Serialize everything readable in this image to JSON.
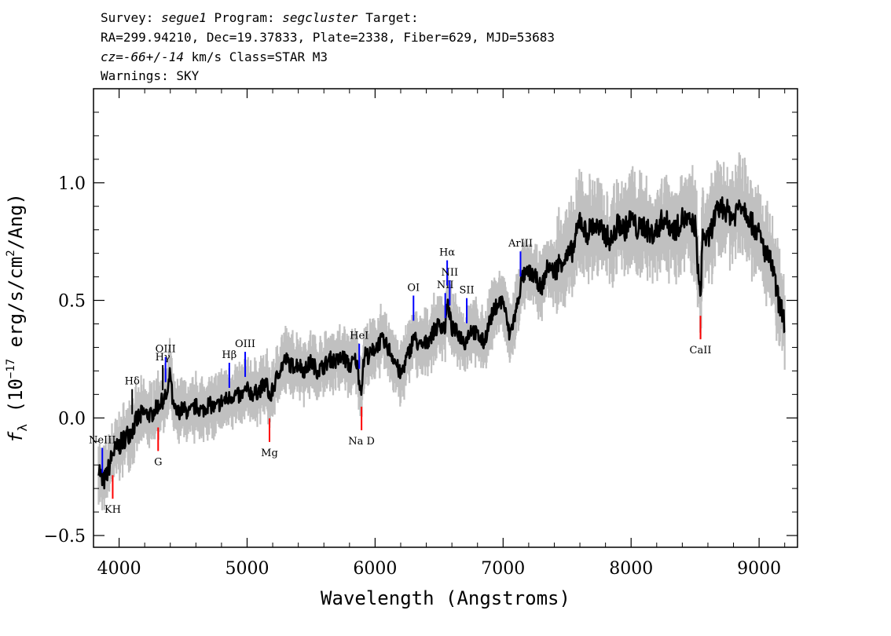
{
  "header": {
    "survey_label": "Survey:",
    "survey": "segue1",
    "program_label": "Program:",
    "program": "segcluster",
    "target_label": "Target:",
    "line2": "RA=299.94210, Dec=19.37833, Plate=2338, Fiber=629, MJD=53683",
    "cz_label": "cz=",
    "cz_value": "-66+/-14",
    "cz_rest": " km/s Class=STAR M3",
    "warnings": "Warnings: SKY"
  },
  "chart_data": {
    "type": "line",
    "xlabel": "Wavelength (Angstroms)",
    "ylabel": "f_λ (10^-17 erg/s/cm^2/Ang)",
    "xlim": [
      3800,
      9300
    ],
    "ylim": [
      -0.55,
      1.4
    ],
    "xticks": [
      4000,
      5000,
      6000,
      7000,
      8000,
      9000
    ],
    "xtick_labels": [
      "4000",
      "5000",
      "6000",
      "7000",
      "8000",
      "9000"
    ],
    "yticks": [
      -0.5,
      0.0,
      0.5,
      1.0
    ],
    "ytick_labels": [
      "−0.5",
      "0.0",
      "0.5",
      "1.0"
    ],
    "grid": false,
    "series": [
      {
        "color": "#000000",
        "x": [
          3840,
          3870,
          3900,
          3950,
          4000,
          4050,
          4100,
          4150,
          4200,
          4250,
          4300,
          4350,
          4380,
          4400,
          4420,
          4450,
          4500,
          4550,
          4600,
          4650,
          4700,
          4750,
          4800,
          4850,
          4900,
          4950,
          5000,
          5050,
          5100,
          5150,
          5180,
          5200,
          5250,
          5300,
          5350,
          5400,
          5450,
          5500,
          5550,
          5600,
          5650,
          5700,
          5750,
          5800,
          5850,
          5890,
          5920,
          5950,
          6000,
          6050,
          6100,
          6150,
          6200,
          6250,
          6280,
          6300,
          6350,
          6400,
          6450,
          6500,
          6550,
          6563,
          6600,
          6650,
          6700,
          6750,
          6800,
          6850,
          6900,
          6950,
          7000,
          7050,
          7100,
          7150,
          7200,
          7250,
          7300,
          7350,
          7400,
          7450,
          7500,
          7550,
          7600,
          7650,
          7700,
          7750,
          7800,
          7850,
          7900,
          7950,
          8000,
          8050,
          8100,
          8150,
          8200,
          8250,
          8300,
          8350,
          8400,
          8450,
          8500,
          8540,
          8560,
          8600,
          8650,
          8700,
          8750,
          8800,
          8850,
          8900,
          8950,
          9000,
          9050,
          9100,
          9150,
          9180,
          9200
        ],
        "y": [
          -0.2,
          -0.28,
          -0.25,
          -0.15,
          -0.12,
          -0.08,
          -0.05,
          0.0,
          0.02,
          0.01,
          0.05,
          0.08,
          0.1,
          0.2,
          0.05,
          0.02,
          0.04,
          0.02,
          0.05,
          0.03,
          0.06,
          0.04,
          0.07,
          0.08,
          0.1,
          0.09,
          0.12,
          0.1,
          0.12,
          0.15,
          0.08,
          0.12,
          0.2,
          0.25,
          0.22,
          0.23,
          0.2,
          0.24,
          0.2,
          0.22,
          0.25,
          0.24,
          0.26,
          0.22,
          0.25,
          0.12,
          0.28,
          0.26,
          0.3,
          0.33,
          0.3,
          0.25,
          0.18,
          0.26,
          0.3,
          0.35,
          0.3,
          0.32,
          0.36,
          0.4,
          0.38,
          0.5,
          0.38,
          0.36,
          0.32,
          0.38,
          0.35,
          0.32,
          0.42,
          0.48,
          0.5,
          0.35,
          0.45,
          0.6,
          0.62,
          0.6,
          0.55,
          0.65,
          0.62,
          0.67,
          0.68,
          0.72,
          0.85,
          0.78,
          0.82,
          0.8,
          0.78,
          0.75,
          0.83,
          0.8,
          0.85,
          0.8,
          0.82,
          0.78,
          0.8,
          0.85,
          0.82,
          0.8,
          0.85,
          0.83,
          0.82,
          0.5,
          0.78,
          0.75,
          0.85,
          0.9,
          0.88,
          0.85,
          0.92,
          0.88,
          0.82,
          0.78,
          0.7,
          0.65,
          0.5,
          0.45,
          0.4
        ],
        "error_band_color": "#c0c0c0"
      }
    ],
    "annotations": [
      {
        "label": "NeIII",
        "wavelength": 3869,
        "color": "#0000ff",
        "position": "above"
      },
      {
        "label": "Hδ",
        "wavelength": 4102,
        "color": "#000000",
        "position": "above"
      },
      {
        "label": "Hγ",
        "wavelength": 4341,
        "color": "#000000",
        "position": "above"
      },
      {
        "label": "OIII",
        "wavelength": 4363,
        "color": "#0000ff",
        "position": "above"
      },
      {
        "label": "Hβ",
        "wavelength": 4861,
        "color": "#0000ff",
        "position": "above"
      },
      {
        "label": "OIII",
        "wavelength": 4985,
        "color": "#0000ff",
        "position": "above"
      },
      {
        "label": "HeI",
        "wavelength": 5876,
        "color": "#0000ff",
        "position": "above"
      },
      {
        "label": "OI",
        "wavelength": 6300,
        "color": "#0000ff",
        "position": "above"
      },
      {
        "label": "NII",
        "wavelength": 6548,
        "color": "#0000ff",
        "position": "above"
      },
      {
        "label": "Hα",
        "wavelength": 6563,
        "color": "#0000ff",
        "position": "above"
      },
      {
        "label": "NII",
        "wavelength": 6583,
        "color": "#0000ff",
        "position": "above"
      },
      {
        "label": "SII",
        "wavelength": 6716,
        "color": "#0000ff",
        "position": "above"
      },
      {
        "label": "ArIII",
        "wavelength": 7136,
        "color": "#0000ff",
        "position": "above"
      },
      {
        "label": "KH",
        "wavelength": 3950,
        "color": "#ff0000",
        "position": "below"
      },
      {
        "label": "G",
        "wavelength": 4305,
        "color": "#ff0000",
        "position": "below"
      },
      {
        "label": "Mg",
        "wavelength": 5175,
        "color": "#ff0000",
        "position": "below"
      },
      {
        "label": "Na D",
        "wavelength": 5894,
        "color": "#ff0000",
        "position": "below"
      },
      {
        "label": "CaII",
        "wavelength": 8542,
        "color": "#ff0000",
        "position": "below"
      }
    ]
  }
}
